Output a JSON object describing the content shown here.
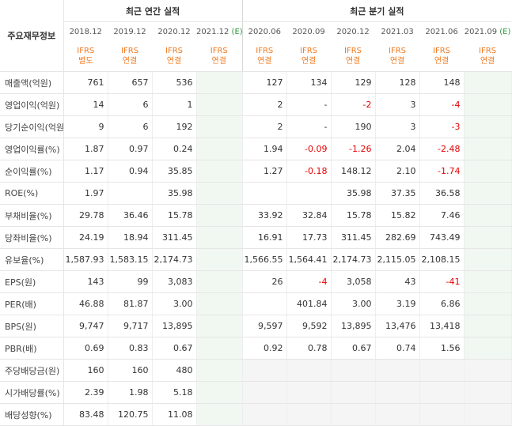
{
  "header": {
    "corner_label": "주요재무정보",
    "annual_group": "최근 연간 실적",
    "quarter_group": "최근 분기 실적",
    "annual_periods": [
      "2018.12",
      "2019.12",
      "2020.12",
      "2021.12"
    ],
    "annual_estimate_marker": "(E)",
    "quarter_periods": [
      "2020.06",
      "2020.09",
      "2020.12",
      "2021.03",
      "2021.06",
      "2021.09"
    ],
    "quarter_estimate_marker": "(E)",
    "annual_ifrs": [
      [
        "IFRS",
        "별도"
      ],
      [
        "IFRS",
        "연결"
      ],
      [
        "IFRS",
        "연결"
      ],
      [
        "IFRS",
        "연결"
      ]
    ],
    "quarter_ifrs": [
      [
        "IFRS",
        "연결"
      ],
      [
        "IFRS",
        "연결"
      ],
      [
        "IFRS",
        "연결"
      ],
      [
        "IFRS",
        "연결"
      ],
      [
        "IFRS",
        "연결"
      ],
      [
        "IFRS",
        "연결"
      ]
    ]
  },
  "colors": {
    "ifrs": "#f07b22",
    "negative": "#e60000",
    "estimate_bg": "#f1f8f1"
  },
  "rows": [
    {
      "label": "매출액(억원)",
      "annual": [
        "761",
        "657",
        "536",
        ""
      ],
      "quarter": [
        "127",
        "134",
        "129",
        "128",
        "148",
        ""
      ]
    },
    {
      "label": "영업이익(억원)",
      "annual": [
        "14",
        "6",
        "1",
        ""
      ],
      "quarter": [
        "2",
        "-",
        "-2",
        "3",
        "-4",
        ""
      ]
    },
    {
      "label": "당기순이익(억원)",
      "annual": [
        "9",
        "6",
        "192",
        ""
      ],
      "quarter": [
        "2",
        "-",
        "190",
        "3",
        "-3",
        ""
      ]
    },
    {
      "label": "영업이익률(%)",
      "annual": [
        "1.87",
        "0.97",
        "0.24",
        ""
      ],
      "quarter": [
        "1.94",
        "-0.09",
        "-1.26",
        "2.04",
        "-2.48",
        ""
      ]
    },
    {
      "label": "순이익률(%)",
      "annual": [
        "1.17",
        "0.94",
        "35.85",
        ""
      ],
      "quarter": [
        "1.27",
        "-0.18",
        "148.12",
        "2.10",
        "-1.74",
        ""
      ]
    },
    {
      "label": "ROE(%)",
      "annual": [
        "1.97",
        "",
        "35.98",
        ""
      ],
      "quarter": [
        "",
        "",
        "35.98",
        "37.35",
        "36.58",
        ""
      ]
    },
    {
      "label": "부채비율(%)",
      "annual": [
        "29.78",
        "36.46",
        "15.78",
        ""
      ],
      "quarter": [
        "33.92",
        "32.84",
        "15.78",
        "15.82",
        "7.46",
        ""
      ]
    },
    {
      "label": "당좌비율(%)",
      "annual": [
        "24.19",
        "18.94",
        "311.45",
        ""
      ],
      "quarter": [
        "16.91",
        "17.73",
        "311.45",
        "282.69",
        "743.49",
        ""
      ]
    },
    {
      "label": "유보율(%)",
      "annual": [
        "1,587.93",
        "1,583.15",
        "2,174.73",
        ""
      ],
      "quarter": [
        "1,566.55",
        "1,564.41",
        "2,174.73",
        "2,115.05",
        "2,108.15",
        ""
      ]
    },
    {
      "label": "EPS(원)",
      "annual": [
        "143",
        "99",
        "3,083",
        ""
      ],
      "quarter": [
        "26",
        "-4",
        "3,058",
        "43",
        "-41",
        ""
      ]
    },
    {
      "label": "PER(배)",
      "annual": [
        "46.88",
        "81.87",
        "3.00",
        ""
      ],
      "quarter": [
        "",
        "401.84",
        "3.00",
        "3.19",
        "6.86",
        ""
      ]
    },
    {
      "label": "BPS(원)",
      "annual": [
        "9,747",
        "9,717",
        "13,895",
        ""
      ],
      "quarter": [
        "9,597",
        "9,592",
        "13,895",
        "13,476",
        "13,418",
        ""
      ]
    },
    {
      "label": "PBR(배)",
      "annual": [
        "0.69",
        "0.83",
        "0.67",
        ""
      ],
      "quarter": [
        "0.92",
        "0.78",
        "0.67",
        "0.74",
        "1.56",
        ""
      ]
    },
    {
      "label": "주당배당금(원)",
      "annual": [
        "160",
        "160",
        "480",
        ""
      ],
      "quarter": [
        "",
        "",
        "",
        "",
        "",
        ""
      ]
    },
    {
      "label": "시가배당률(%)",
      "annual": [
        "2.39",
        "1.98",
        "5.18",
        ""
      ],
      "quarter": [
        "",
        "",
        "",
        "",
        "",
        ""
      ]
    },
    {
      "label": "배당성향(%)",
      "annual": [
        "83.48",
        "120.75",
        "11.08",
        ""
      ],
      "quarter": [
        "",
        "",
        "",
        "",
        "",
        ""
      ]
    }
  ]
}
